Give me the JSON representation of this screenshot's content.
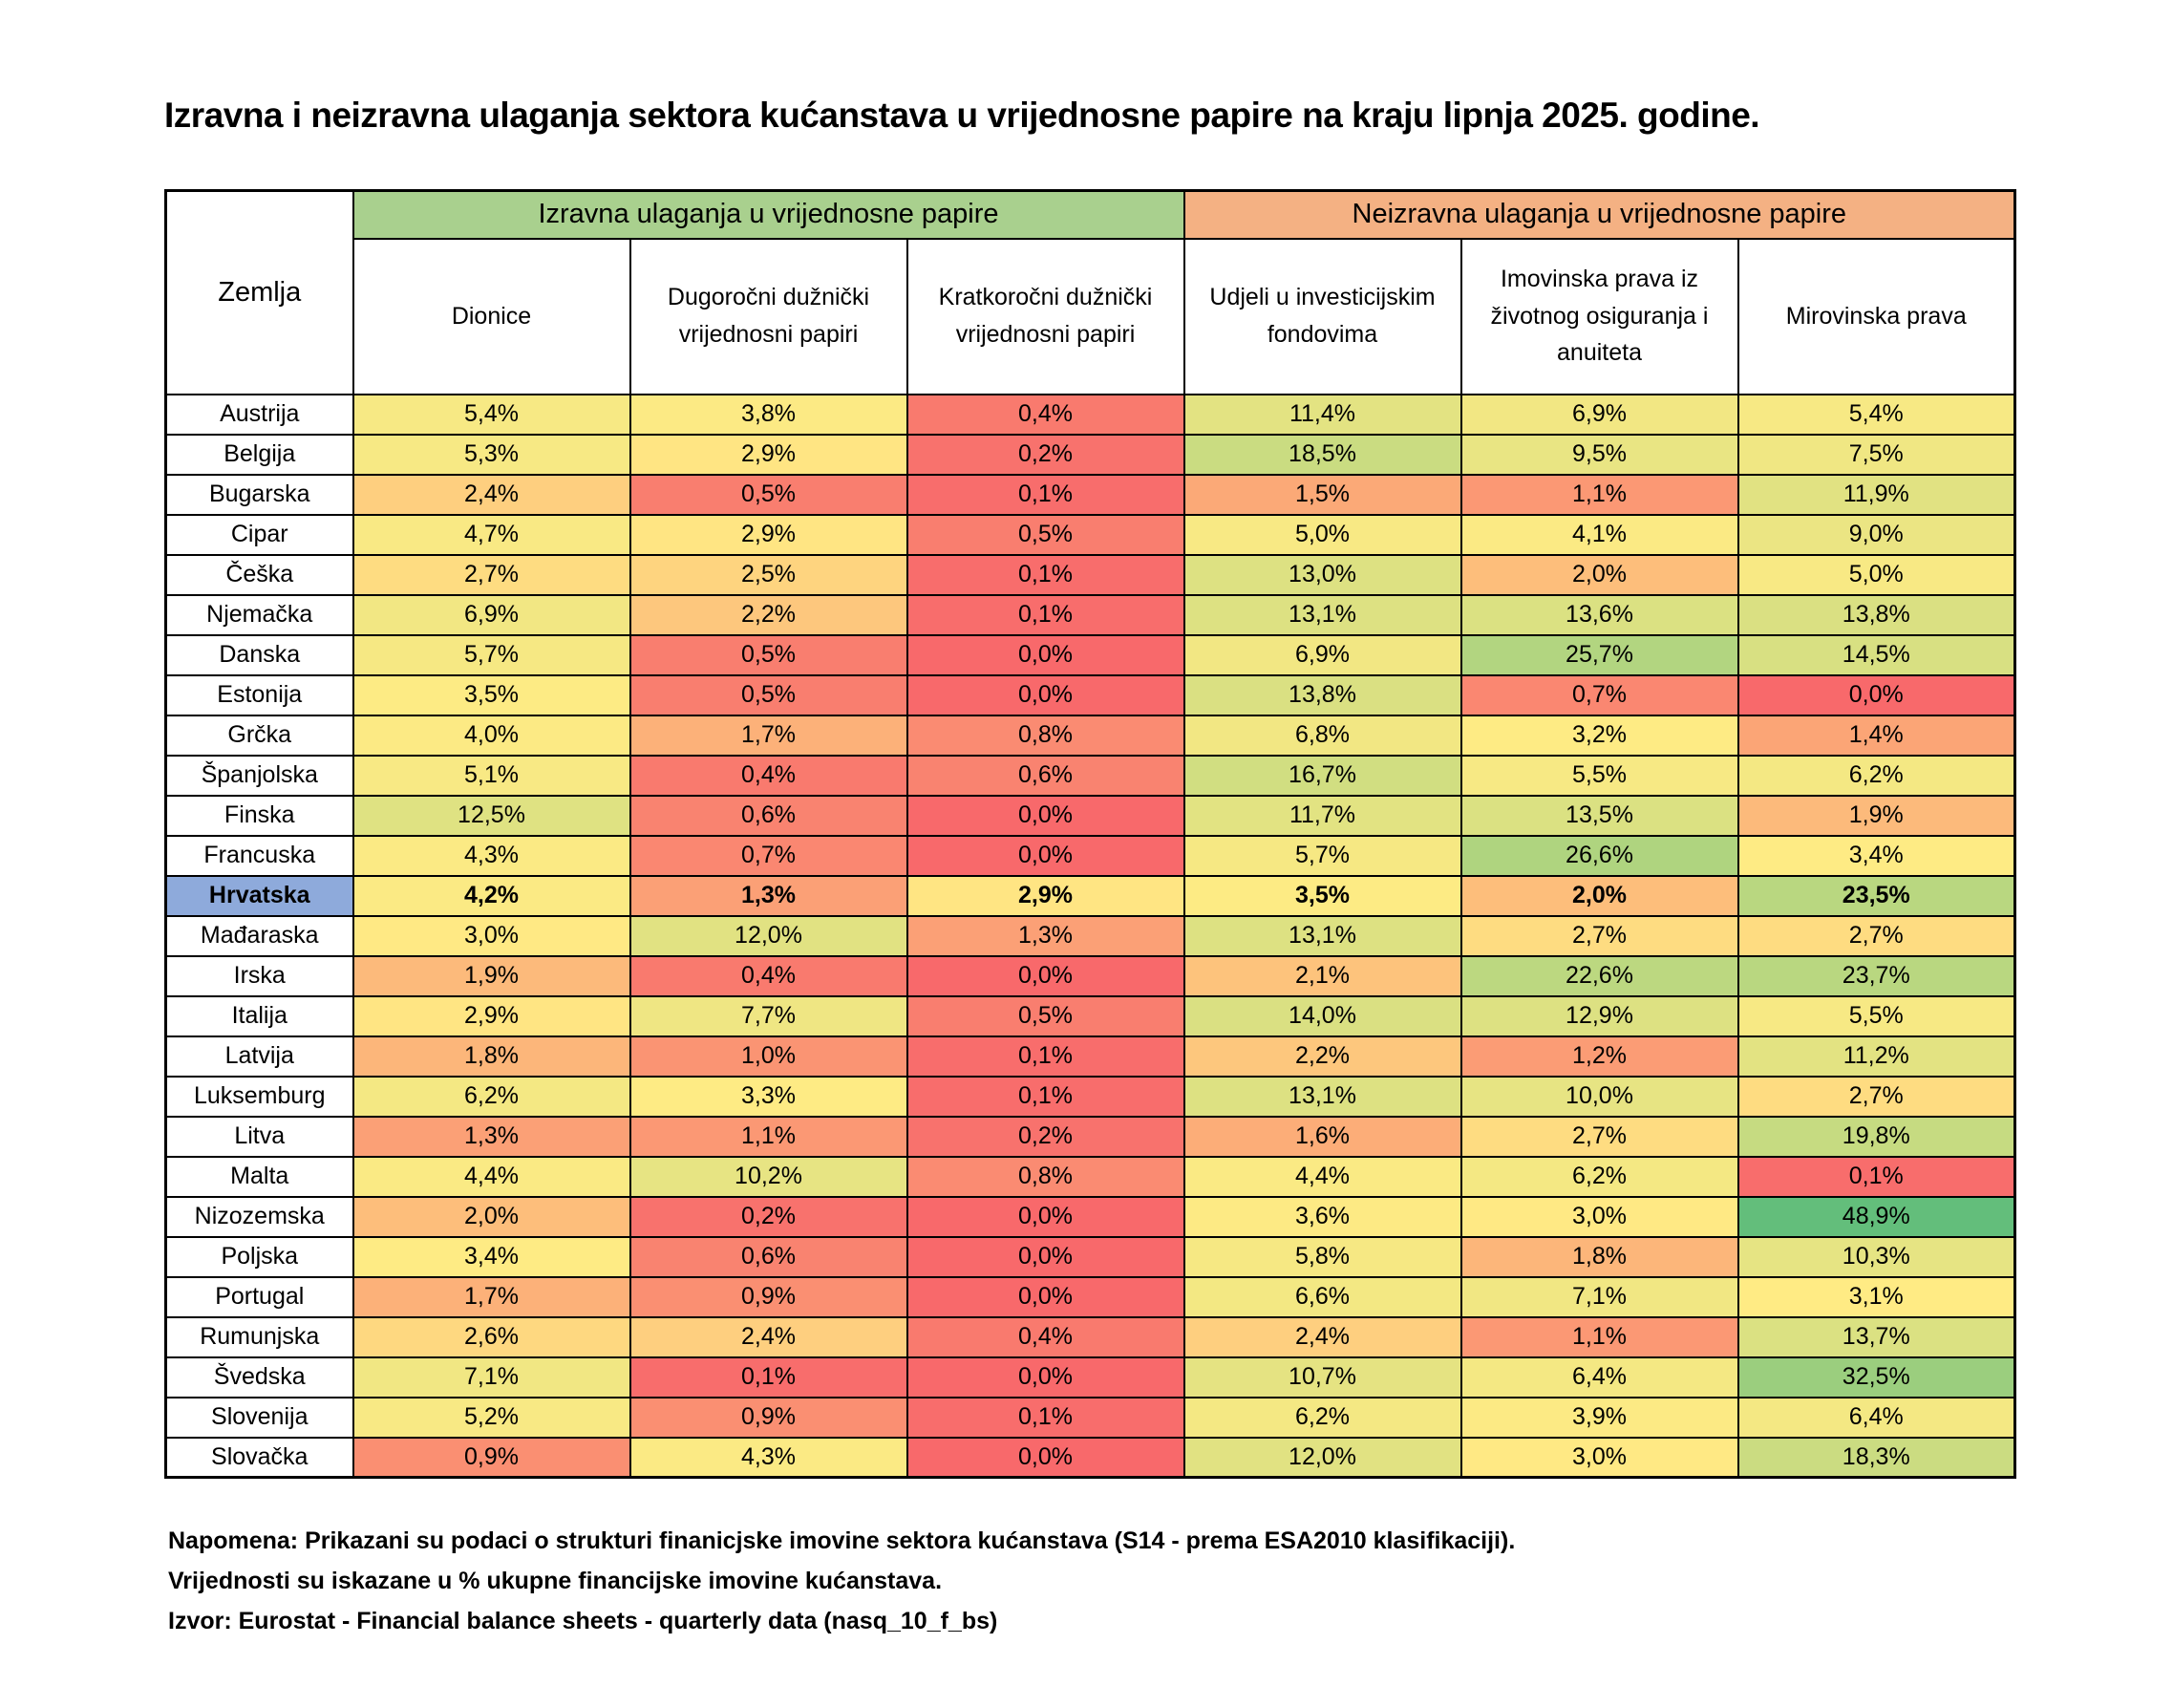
{
  "title": "Izravna i neizravna ulaganja sektora kućanstava u vrijednosne papire na kraju lipnja 2025. godine.",
  "table": {
    "corner_header": "Zemlja",
    "group_headers": [
      {
        "label": "Izravna ulaganja u vrijednosne papire",
        "color": "#A9D08E"
      },
      {
        "label": "Neizravna ulaganja u vrijednosne papire",
        "color": "#F4B183"
      }
    ],
    "highlight_country": "Hrvatska",
    "highlight_color": "#8EAADB"
  },
  "chart_data": {
    "type": "heatmap",
    "title": "Izravna i neizravna ulaganja sektora kućanstava u vrijednosne papire na kraju lipnja 2025. godine.",
    "unit": "% ukupne financijske imovine kućanstava",
    "value_format": "comma-decimal-percent",
    "columns": [
      "Dionice",
      "Dugoročni dužnički vrijednosni papiri",
      "Kratkoročni dužnički vrijednosni papiri",
      "Udjeli u investicijskim fondovima",
      "Imovinska prava iz životnog osiguranja i anuiteta",
      "Mirovinska prava"
    ],
    "column_groups": [
      {
        "label": "Izravna ulaganja u vrijednosne papire",
        "span": [
          0,
          2
        ]
      },
      {
        "label": "Neizravna ulaganja u vrijednosne papire",
        "span": [
          3,
          5
        ]
      }
    ],
    "rows": [
      {
        "country": "Austrija",
        "values": [
          5.4,
          3.8,
          0.4,
          11.4,
          6.9,
          5.4
        ]
      },
      {
        "country": "Belgija",
        "values": [
          5.3,
          2.9,
          0.2,
          18.5,
          9.5,
          7.5
        ]
      },
      {
        "country": "Bugarska",
        "values": [
          2.4,
          0.5,
          0.1,
          1.5,
          1.1,
          11.9
        ]
      },
      {
        "country": "Cipar",
        "values": [
          4.7,
          2.9,
          0.5,
          5.0,
          4.1,
          9.0
        ]
      },
      {
        "country": "Češka",
        "values": [
          2.7,
          2.5,
          0.1,
          13.0,
          2.0,
          5.0
        ]
      },
      {
        "country": "Njemačka",
        "values": [
          6.9,
          2.2,
          0.1,
          13.1,
          13.6,
          13.8
        ]
      },
      {
        "country": "Danska",
        "values": [
          5.7,
          0.5,
          0.0,
          6.9,
          25.7,
          14.5
        ]
      },
      {
        "country": "Estonija",
        "values": [
          3.5,
          0.5,
          0.0,
          13.8,
          0.7,
          0.0
        ]
      },
      {
        "country": "Grčka",
        "values": [
          4.0,
          1.7,
          0.8,
          6.8,
          3.2,
          1.4
        ]
      },
      {
        "country": "Španjolska",
        "values": [
          5.1,
          0.4,
          0.6,
          16.7,
          5.5,
          6.2
        ]
      },
      {
        "country": "Finska",
        "values": [
          12.5,
          0.6,
          0.0,
          11.7,
          13.5,
          1.9
        ]
      },
      {
        "country": "Francuska",
        "values": [
          4.3,
          0.7,
          0.0,
          5.7,
          26.6,
          3.4
        ]
      },
      {
        "country": "Hrvatska",
        "values": [
          4.2,
          1.3,
          2.9,
          3.5,
          2.0,
          23.5
        ]
      },
      {
        "country": "Mađaraska",
        "values": [
          3.0,
          12.0,
          1.3,
          13.1,
          2.7,
          2.7
        ]
      },
      {
        "country": "Irska",
        "values": [
          1.9,
          0.4,
          0.0,
          2.1,
          22.6,
          23.7
        ]
      },
      {
        "country": "Italija",
        "values": [
          2.9,
          7.7,
          0.5,
          14.0,
          12.9,
          5.5
        ]
      },
      {
        "country": "Latvija",
        "values": [
          1.8,
          1.0,
          0.1,
          2.2,
          1.2,
          11.2
        ]
      },
      {
        "country": "Luksemburg",
        "values": [
          6.2,
          3.3,
          0.1,
          13.1,
          10.0,
          2.7
        ]
      },
      {
        "country": "Litva",
        "values": [
          1.3,
          1.1,
          0.2,
          1.6,
          2.7,
          19.8
        ]
      },
      {
        "country": "Malta",
        "values": [
          4.4,
          10.2,
          0.8,
          4.4,
          6.2,
          0.1
        ]
      },
      {
        "country": "Nizozemska",
        "values": [
          2.0,
          0.2,
          0.0,
          3.6,
          3.0,
          48.9
        ]
      },
      {
        "country": "Poljska",
        "values": [
          3.4,
          0.6,
          0.0,
          5.8,
          1.8,
          10.3
        ]
      },
      {
        "country": "Portugal",
        "values": [
          1.7,
          0.9,
          0.0,
          6.6,
          7.1,
          3.1
        ]
      },
      {
        "country": "Rumunjska",
        "values": [
          2.6,
          2.4,
          0.4,
          2.4,
          1.1,
          13.7
        ]
      },
      {
        "country": "Švedska",
        "values": [
          7.1,
          0.1,
          0.0,
          10.7,
          6.4,
          32.5
        ]
      },
      {
        "country": "Slovenija",
        "values": [
          5.2,
          0.9,
          0.1,
          6.2,
          3.9,
          6.4
        ]
      },
      {
        "country": "Slovačka",
        "values": [
          0.9,
          4.3,
          0.0,
          12.0,
          3.0,
          18.3
        ]
      }
    ],
    "color_scale": {
      "type": "3-color",
      "min_color": "#F8696B",
      "mid_color": "#FFEB84",
      "max_color": "#63BE7B",
      "midpoint": "median"
    }
  },
  "notes": [
    "Napomena: Prikazani su podaci o strukturi finanicjske imovine sektora kućanstava (S14 - prema ESA2010 klasifikaciji).",
    "Vrijednosti su iskazane u % ukupne financijske imovine kućanstava.",
    "Izvor: Eurostat - Financial balance sheets - quarterly data (nasq_10_f_bs)"
  ]
}
